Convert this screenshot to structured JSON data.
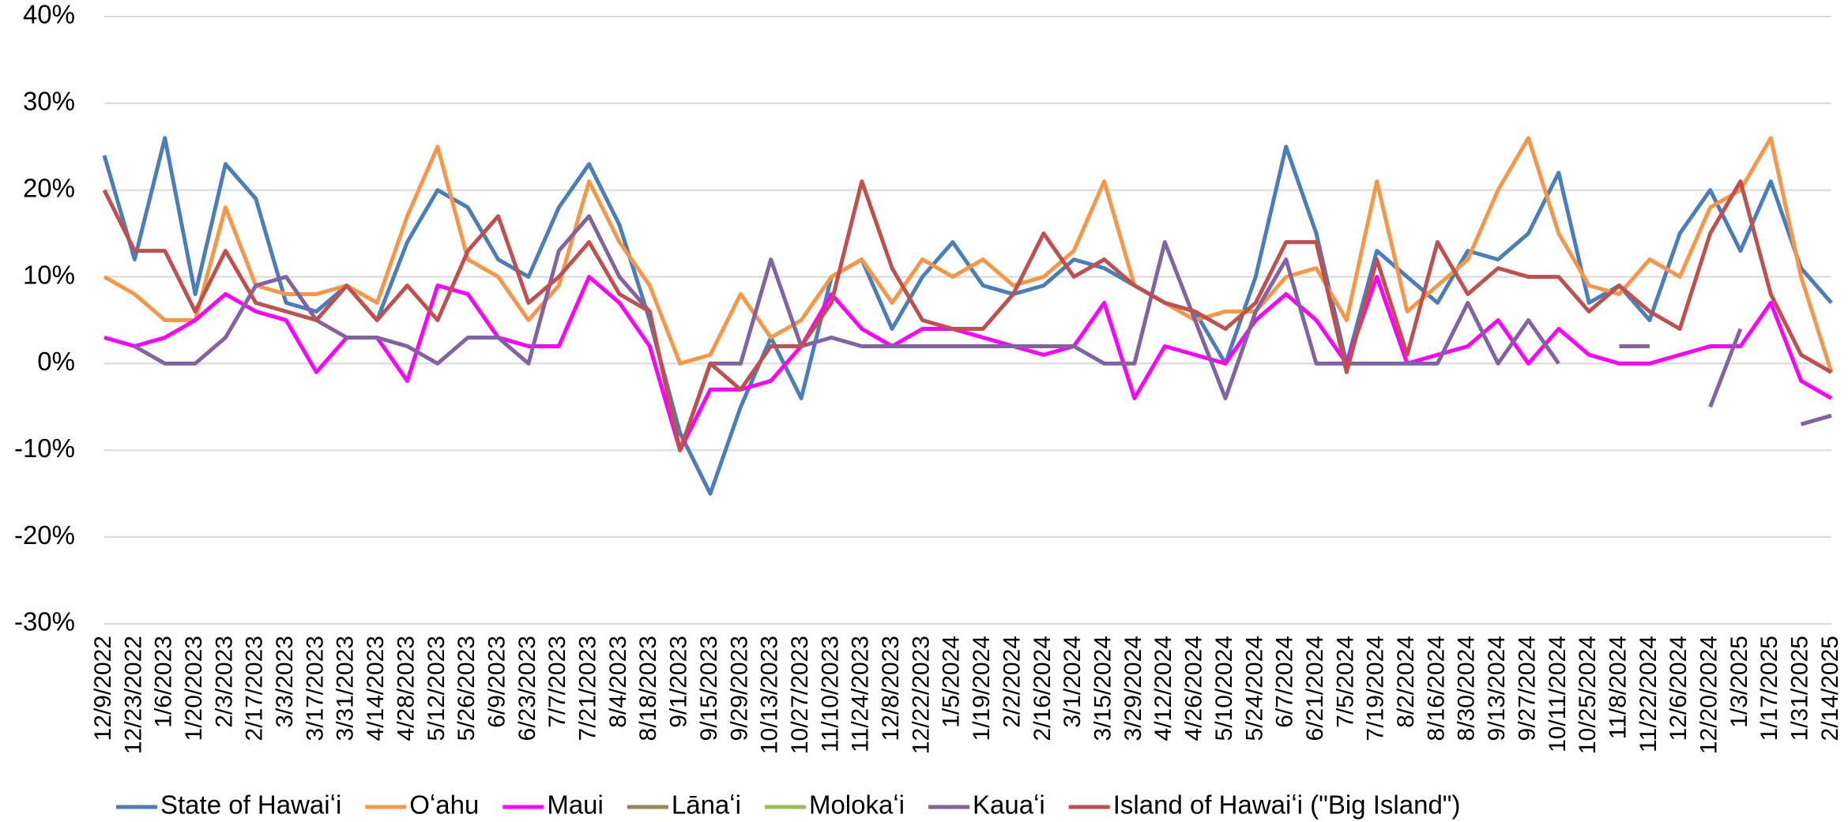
{
  "chart_data": {
    "type": "line",
    "categories": [
      "12/9/2022",
      "12/23/2022",
      "1/6/2023",
      "1/20/2023",
      "2/3/2023",
      "2/17/2023",
      "3/3/2023",
      "3/17/2023",
      "3/31/2023",
      "4/14/2023",
      "4/28/2023",
      "5/12/2023",
      "5/26/2023",
      "6/9/2023",
      "6/23/2023",
      "7/7/2023",
      "7/21/2023",
      "8/4/2023",
      "8/18/2023",
      "9/1/2023",
      "9/15/2023",
      "9/29/2023",
      "10/13/2023",
      "10/27/2023",
      "11/10/2023",
      "11/24/2023",
      "12/8/2023",
      "12/22/2023",
      "1/5/2024",
      "1/19/2024",
      "2/2/2024",
      "2/16/2024",
      "3/1/2024",
      "3/15/2024",
      "3/29/2024",
      "4/12/2024",
      "4/26/2024",
      "5/10/2024",
      "5/24/2024",
      "6/7/2024",
      "6/21/2024",
      "7/5/2024",
      "7/19/2024",
      "8/2/2024",
      "8/16/2024",
      "8/30/2024",
      "9/13/2024",
      "9/27/2024",
      "10/11/2024",
      "10/25/2024",
      "11/8/2024",
      "11/22/2024",
      "12/6/2024",
      "12/20/2024",
      "1/3/2025",
      "1/17/2025",
      "1/31/2025",
      "2/14/2025"
    ],
    "series": [
      {
        "name": "State of Hawaiʻi",
        "color": "#4a7ebb",
        "values": [
          24,
          12,
          26,
          8,
          23,
          19,
          7,
          6,
          9,
          5,
          14,
          20,
          18,
          12,
          10,
          18,
          23,
          16,
          5,
          -8,
          -15,
          -5,
          3,
          -4,
          10,
          12,
          4,
          10,
          14,
          9,
          8,
          9,
          12,
          11,
          9,
          7,
          6,
          0,
          10,
          25,
          15,
          0,
          13,
          10,
          7,
          13,
          12,
          15,
          22,
          7,
          9,
          5,
          15,
          20,
          13,
          21,
          11,
          7
        ]
      },
      {
        "name": "Oʻahu",
        "color": "#f79646",
        "values": [
          10,
          8,
          5,
          5,
          18,
          9,
          8,
          8,
          9,
          7,
          17,
          25,
          12,
          10,
          5,
          9,
          21,
          14,
          9,
          0,
          1,
          8,
          3,
          5,
          10,
          12,
          7,
          12,
          10,
          12,
          9,
          10,
          13,
          21,
          9,
          7,
          5,
          6,
          6,
          10,
          11,
          5,
          21,
          6,
          9,
          12,
          20,
          26,
          15,
          9,
          8,
          12,
          10,
          18,
          20,
          26,
          10,
          -1
        ]
      },
      {
        "name": "Maui",
        "color": "#ff00ff",
        "values": [
          3,
          2,
          3,
          5,
          8,
          6,
          5,
          -1,
          3,
          3,
          -2,
          9,
          8,
          3,
          2,
          2,
          10,
          7,
          2,
          -10,
          -3,
          -3,
          -2,
          2,
          8,
          4,
          2,
          4,
          4,
          3,
          2,
          1,
          2,
          7,
          -4,
          2,
          1,
          0,
          5,
          8,
          5,
          0,
          10,
          0,
          1,
          2,
          5,
          0,
          4,
          1,
          0,
          0,
          1,
          2,
          2,
          7,
          -2,
          -4
        ]
      },
      {
        "name": "Lānaʻi",
        "color": "#948a54",
        "values": [
          null,
          null,
          null,
          null,
          null,
          null,
          null,
          null,
          null,
          null,
          null,
          null,
          null,
          null,
          null,
          null,
          null,
          null,
          null,
          null,
          null,
          null,
          null,
          null,
          null,
          null,
          null,
          null,
          null,
          null,
          null,
          null,
          null,
          null,
          null,
          null,
          null,
          null,
          null,
          null,
          null,
          null,
          null,
          null,
          null,
          null,
          null,
          null,
          null,
          null,
          null,
          null,
          null,
          null,
          null,
          null,
          null,
          null
        ]
      },
      {
        "name": "Molokaʻi",
        "color": "#9bbb59",
        "values": [
          null,
          null,
          null,
          null,
          null,
          null,
          null,
          null,
          null,
          null,
          null,
          null,
          null,
          null,
          null,
          null,
          null,
          null,
          null,
          null,
          null,
          null,
          null,
          null,
          null,
          null,
          null,
          null,
          null,
          null,
          null,
          null,
          null,
          null,
          null,
          null,
          null,
          null,
          null,
          null,
          null,
          null,
          null,
          null,
          null,
          null,
          null,
          null,
          null,
          null,
          null,
          null,
          null,
          null,
          null,
          null,
          null,
          null
        ]
      },
      {
        "name": "Kauaʻi",
        "color": "#8064a2",
        "values": [
          null,
          2,
          0,
          0,
          3,
          9,
          10,
          5,
          3,
          3,
          2,
          0,
          3,
          3,
          0,
          13,
          17,
          10,
          6,
          -10,
          0,
          0,
          12,
          2,
          3,
          2,
          2,
          2,
          2,
          2,
          2,
          2,
          2,
          0,
          0,
          14,
          5,
          -4,
          6,
          12,
          0,
          0,
          0,
          0,
          0,
          7,
          0,
          5,
          0,
          null,
          2,
          2,
          null,
          -5,
          4,
          null,
          -7,
          -6
        ]
      },
      {
        "name": "Island of Hawaiʻi (\"Big Island\")",
        "color": "#c0504d",
        "values": [
          20,
          13,
          13,
          6,
          13,
          7,
          6,
          5,
          9,
          5,
          9,
          5,
          13,
          17,
          7,
          10,
          14,
          8,
          6,
          -10,
          0,
          -3,
          2,
          2,
          7,
          21,
          11,
          5,
          4,
          4,
          8,
          15,
          10,
          12,
          9,
          7,
          6,
          4,
          7,
          14,
          14,
          -1,
          12,
          1,
          14,
          8,
          11,
          10,
          10,
          6,
          9,
          6,
          4,
          15,
          21,
          8,
          1,
          -1
        ]
      }
    ],
    "ylim": [
      -30,
      40
    ],
    "yticks": [
      {
        "value": -30,
        "label": "-30%"
      },
      {
        "value": -20,
        "label": "-20%"
      },
      {
        "value": -10,
        "label": "-10%"
      },
      {
        "value": 0,
        "label": "0%"
      },
      {
        "value": 10,
        "label": "10%"
      },
      {
        "value": 20,
        "label": "20%"
      },
      {
        "value": 30,
        "label": "30%"
      },
      {
        "value": 40,
        "label": "40%"
      }
    ],
    "grid": true,
    "legend": "bottom"
  }
}
